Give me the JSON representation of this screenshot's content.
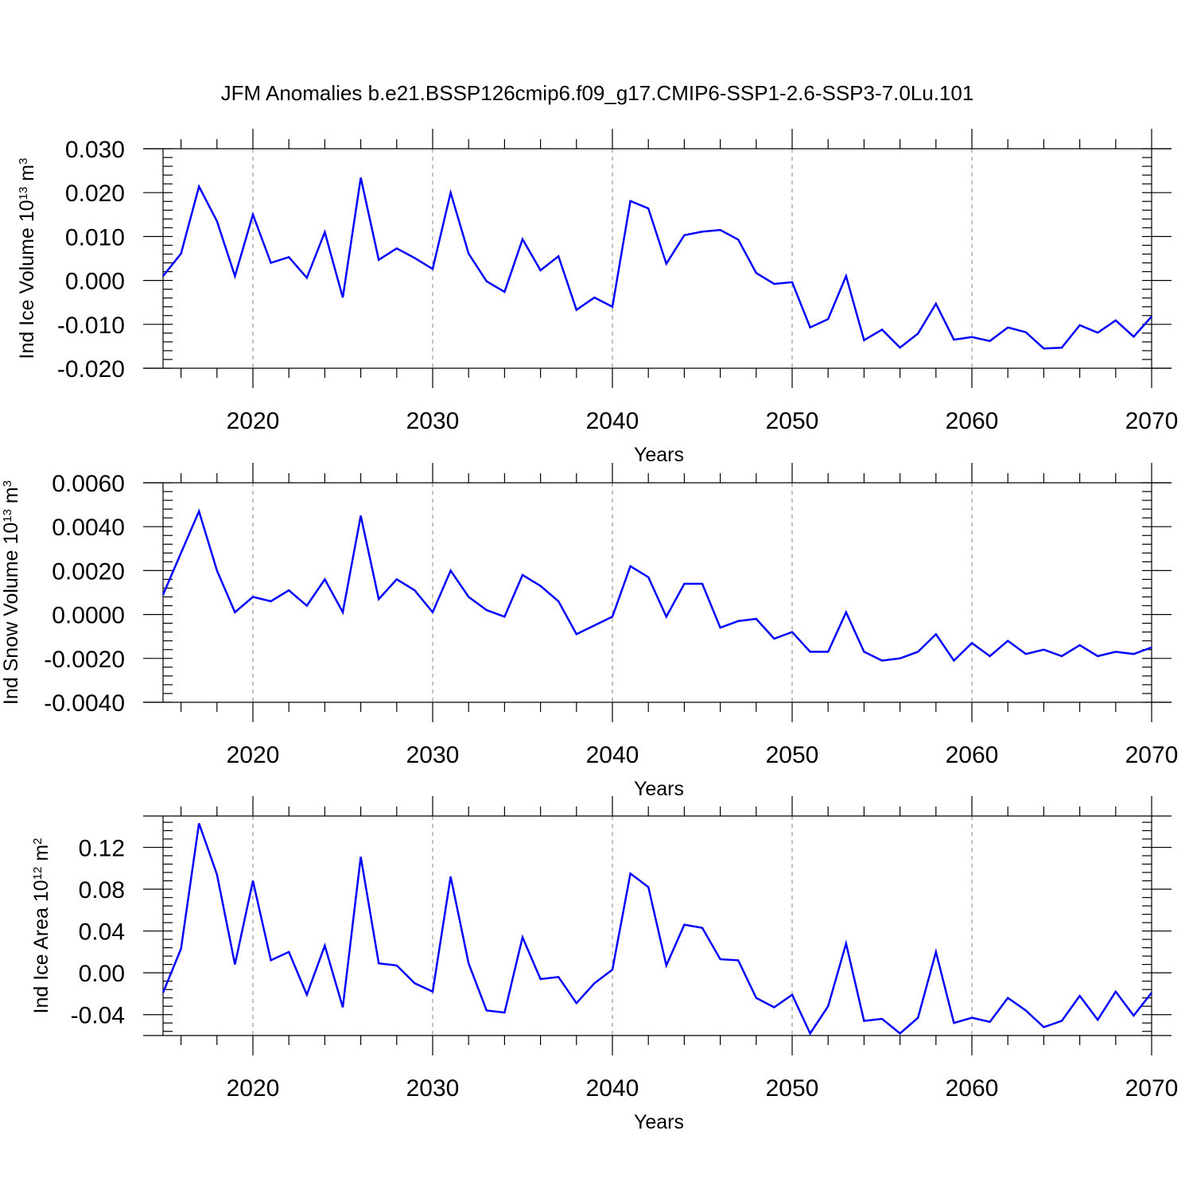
{
  "title": "JFM Anomalies b.e21.BSSP126cmip6.f09_g17.CMIP6-SSP1-2.6-SSP3-7.0Lu.101",
  "colors": {
    "line": "#0000ff",
    "axes": "#000000",
    "grid": "#999999"
  },
  "chart_data": [
    {
      "type": "line",
      "ylabel": {
        "main": "Ind Ice Volume 10",
        "sup": "13",
        "unit": " m",
        "unit_sup": "3"
      },
      "xlabel": "Years",
      "xlim": [
        2015,
        2070
      ],
      "ylim": [
        -0.02,
        0.03
      ],
      "yticks": [
        -0.02,
        -0.01,
        0.0,
        0.01,
        0.02,
        0.03
      ],
      "yticklabels": [
        "-0.020",
        "-0.010",
        "0.000",
        "0.010",
        "0.020",
        "0.030"
      ],
      "yminor_step": 0.002,
      "xticks": [
        2020,
        2030,
        2040,
        2050,
        2060,
        2070
      ],
      "xticklabels": [
        "2020",
        "2030",
        "2040",
        "2050",
        "2060",
        "2070"
      ],
      "grid": "vertical-dashed",
      "x": [
        2015,
        2016,
        2017,
        2018,
        2019,
        2020,
        2021,
        2022,
        2023,
        2024,
        2025,
        2026,
        2027,
        2028,
        2029,
        2030,
        2031,
        2032,
        2033,
        2034,
        2035,
        2036,
        2037,
        2038,
        2039,
        2040,
        2041,
        2042,
        2043,
        2044,
        2045,
        2046,
        2047,
        2048,
        2049,
        2050,
        2051,
        2052,
        2053,
        2054,
        2055,
        2056,
        2057,
        2058,
        2059,
        2060,
        2061,
        2062,
        2063,
        2064,
        2065,
        2066,
        2067,
        2068,
        2069,
        2070
      ],
      "values": [
        0.001,
        0.0061,
        0.0214,
        0.0135,
        0.001,
        0.015,
        0.004,
        0.0053,
        0.0006,
        0.011,
        -0.0039,
        0.0234,
        0.0047,
        0.0073,
        0.0051,
        0.0026,
        0.02,
        0.0061,
        -0.0002,
        -0.0026,
        0.0094,
        0.0023,
        0.0055,
        -0.0067,
        -0.0039,
        -0.006,
        0.0181,
        0.0164,
        0.0038,
        0.0103,
        0.0111,
        0.0115,
        0.0093,
        0.0017,
        -0.0008,
        -0.0004,
        -0.0107,
        -0.0088,
        0.001,
        -0.0136,
        -0.0112,
        -0.0153,
        -0.0121,
        -0.0053,
        -0.0135,
        -0.0129,
        -0.0138,
        -0.0107,
        -0.0118,
        -0.0155,
        -0.0153,
        -0.0102,
        -0.0119,
        -0.0091,
        -0.0128,
        -0.0082
      ]
    },
    {
      "type": "line",
      "ylabel": {
        "main": "Ind Snow Volume 10",
        "sup": "13",
        "unit": " m",
        "unit_sup": "3"
      },
      "xlabel": "Years",
      "xlim": [
        2015,
        2070
      ],
      "ylim": [
        -0.004,
        0.006
      ],
      "yticks": [
        -0.004,
        -0.002,
        0.0,
        0.002,
        0.004,
        0.006
      ],
      "yticklabels": [
        "-0.0040",
        "-0.0020",
        "0.0000",
        "0.0020",
        "0.0040",
        "0.0060"
      ],
      "yminor_step": 0.0004,
      "xticks": [
        2020,
        2030,
        2040,
        2050,
        2060,
        2070
      ],
      "xticklabels": [
        "2020",
        "2030",
        "2040",
        "2050",
        "2060",
        "2070"
      ],
      "grid": "vertical-dashed",
      "x": [
        2015,
        2016,
        2017,
        2018,
        2019,
        2020,
        2021,
        2022,
        2023,
        2024,
        2025,
        2026,
        2027,
        2028,
        2029,
        2030,
        2031,
        2032,
        2033,
        2034,
        2035,
        2036,
        2037,
        2038,
        2039,
        2040,
        2041,
        2042,
        2043,
        2044,
        2045,
        2046,
        2047,
        2048,
        2049,
        2050,
        2051,
        2052,
        2053,
        2054,
        2055,
        2056,
        2057,
        2058,
        2059,
        2060,
        2061,
        2062,
        2063,
        2064,
        2065,
        2066,
        2067,
        2068,
        2069,
        2070
      ],
      "values": [
        0.0009,
        0.0028,
        0.0047,
        0.002,
        0.0001,
        0.0008,
        0.0006,
        0.0011,
        0.0004,
        0.0016,
        0.0001,
        0.0045,
        0.0007,
        0.0016,
        0.0011,
        0.0001,
        0.002,
        0.0008,
        0.0002,
        -0.0001,
        0.0018,
        0.0013,
        0.0006,
        -0.0009,
        -0.0005,
        -0.0001,
        0.0022,
        0.0017,
        -0.0001,
        0.0014,
        0.0014,
        -0.0006,
        -0.0003,
        -0.0002,
        -0.0011,
        -0.0008,
        -0.0017,
        -0.0017,
        0.0001,
        -0.0017,
        -0.0021,
        -0.002,
        -0.0017,
        -0.0009,
        -0.0021,
        -0.0013,
        -0.0019,
        -0.0012,
        -0.0018,
        -0.0016,
        -0.0019,
        -0.0014,
        -0.0019,
        -0.0017,
        -0.0018,
        -0.0015
      ]
    },
    {
      "type": "line",
      "ylabel": {
        "main": "Ind Ice Area 10",
        "sup": "12",
        "unit": " m",
        "unit_sup": "2"
      },
      "xlabel": "Years",
      "xlim": [
        2015,
        2070
      ],
      "ylim": [
        -0.06,
        0.15
      ],
      "yticks": [
        -0.04,
        0.0,
        0.04,
        0.08,
        0.12
      ],
      "yticklabels": [
        "-0.04",
        "0.00",
        "0.04",
        "0.08",
        "0.12"
      ],
      "yminor_step": 0.008,
      "xticks": [
        2020,
        2030,
        2040,
        2050,
        2060,
        2070
      ],
      "xticklabels": [
        "2020",
        "2030",
        "2040",
        "2050",
        "2060",
        "2070"
      ],
      "grid": "vertical-dashed",
      "x": [
        2015,
        2016,
        2017,
        2018,
        2019,
        2020,
        2021,
        2022,
        2023,
        2024,
        2025,
        2026,
        2027,
        2028,
        2029,
        2030,
        2031,
        2032,
        2033,
        2034,
        2035,
        2036,
        2037,
        2038,
        2039,
        2040,
        2041,
        2042,
        2043,
        2044,
        2045,
        2046,
        2047,
        2048,
        2049,
        2050,
        2051,
        2052,
        2053,
        2054,
        2055,
        2056,
        2057,
        2058,
        2059,
        2060,
        2061,
        2062,
        2063,
        2064,
        2065,
        2066,
        2067,
        2068,
        2069,
        2070
      ],
      "values": [
        -0.019,
        0.023,
        0.143,
        0.094,
        0.008,
        0.088,
        0.012,
        0.02,
        -0.021,
        0.026,
        -0.033,
        0.111,
        0.009,
        0.007,
        -0.01,
        -0.018,
        0.092,
        0.009,
        -0.036,
        -0.038,
        0.034,
        -0.006,
        -0.004,
        -0.029,
        -0.01,
        0.003,
        0.095,
        0.082,
        0.007,
        0.046,
        0.043,
        0.013,
        0.012,
        -0.024,
        -0.033,
        -0.021,
        -0.058,
        -0.032,
        0.028,
        -0.046,
        -0.044,
        -0.058,
        -0.043,
        0.02,
        -0.048,
        -0.043,
        -0.047,
        -0.024,
        -0.036,
        -0.052,
        -0.046,
        -0.022,
        -0.045,
        -0.018,
        -0.041,
        -0.019
      ]
    }
  ]
}
